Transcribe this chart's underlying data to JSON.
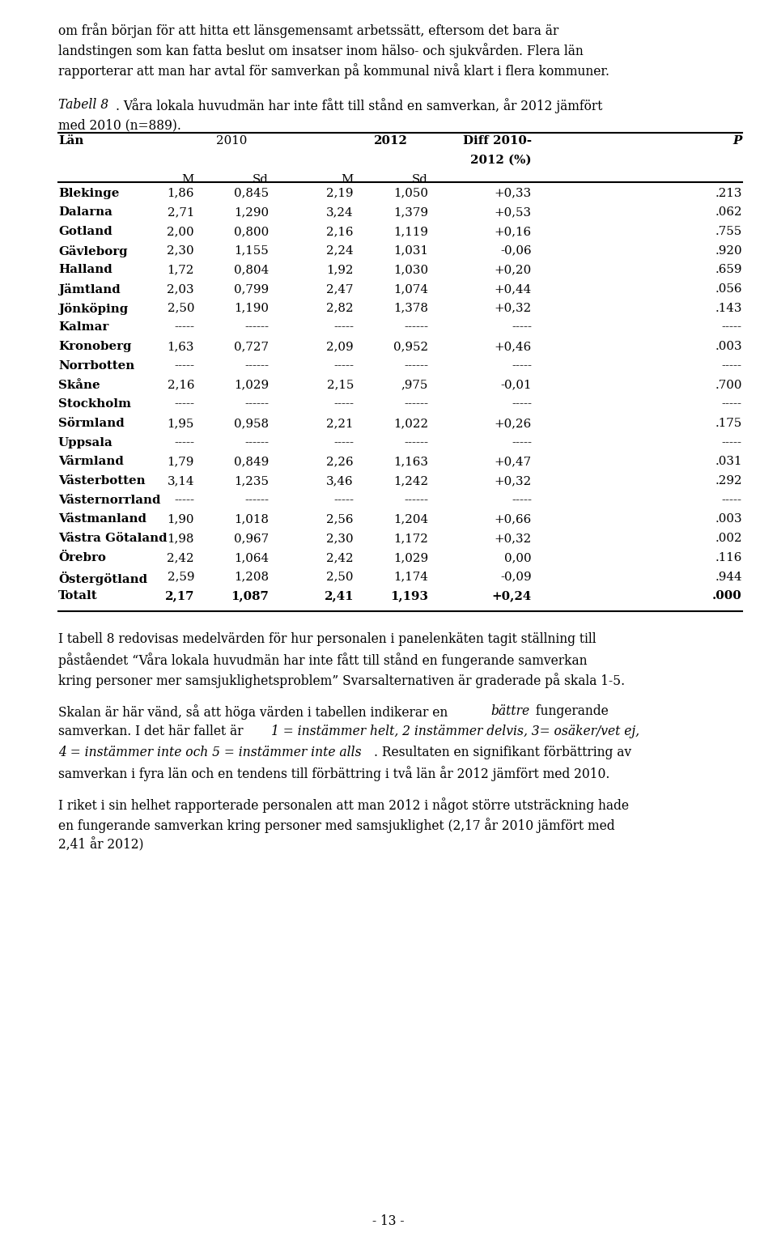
{
  "bg_color": "#ffffff",
  "text_color": "#000000",
  "font_family": "DejaVu Serif",
  "font_size_body": 11.2,
  "font_size_table": 10.8,
  "ml": 0.075,
  "mr": 0.955,
  "table_rows": [
    [
      "Blekinge",
      "1,86",
      "0,845",
      "2,19",
      "1,050",
      "+0,33",
      ".213"
    ],
    [
      "Dalarna",
      "2,71",
      "1,290",
      "3,24",
      "1,379",
      "+0,53",
      ".062"
    ],
    [
      "Gotland",
      "2,00",
      "0,800",
      "2,16",
      "1,119",
      "+0,16",
      ".755"
    ],
    [
      "Gävleborg",
      "2,30",
      "1,155",
      "2,24",
      "1,031",
      "-0,06",
      ".920"
    ],
    [
      "Halland",
      "1,72",
      "0,804",
      "1,92",
      "1,030",
      "+0,20",
      ".659"
    ],
    [
      "Jämtland",
      "2,03",
      "0,799",
      "2,47",
      "1,074",
      "+0,44",
      ".056"
    ],
    [
      "Jönköping",
      "2,50",
      "1,190",
      "2,82",
      "1,378",
      "+0,32",
      ".143"
    ],
    [
      "Kalmar",
      "-----",
      "------",
      "-----",
      "------",
      "-----",
      "-----"
    ],
    [
      "Kronoberg",
      "1,63",
      "0,727",
      "2,09",
      "0,952",
      "+0,46",
      ".003"
    ],
    [
      "Norrbotten",
      "-----",
      "------",
      "-----",
      "------",
      "-----",
      "-----"
    ],
    [
      "Skåne",
      "2,16",
      "1,029",
      "2,15",
      ",975",
      "-0,01",
      ".700"
    ],
    [
      "Stockholm",
      "-----",
      "------",
      "-----",
      "------",
      "-----",
      "-----"
    ],
    [
      "Sörmland",
      "1,95",
      "0,958",
      "2,21",
      "1,022",
      "+0,26",
      ".175"
    ],
    [
      "Uppsala",
      "-----",
      "------",
      "-----",
      "------",
      "-----",
      "-----"
    ],
    [
      "Värmland",
      "1,79",
      "0,849",
      "2,26",
      "1,163",
      "+0,47",
      ".031"
    ],
    [
      "Västerbotten",
      "3,14",
      "1,235",
      "3,46",
      "1,242",
      "+0,32",
      ".292"
    ],
    [
      "Västernorrland",
      "-----",
      "------",
      "-----",
      "------",
      "-----",
      "-----"
    ],
    [
      "Västmanland",
      "1,90",
      "1,018",
      "2,56",
      "1,204",
      "+0,66",
      ".003"
    ],
    [
      "Västra Götaland",
      "1,98",
      "0,967",
      "2,30",
      "1,172",
      "+0,32",
      ".002"
    ],
    [
      "Örebro",
      "2,42",
      "1,064",
      "2,42",
      "1,029",
      "0,00",
      ".116"
    ],
    [
      "Östergötland",
      "2,59",
      "1,208",
      "2,50",
      "1,174",
      "-0,09",
      ".944"
    ],
    [
      "Totalt",
      "2,17",
      "1,087",
      "2,41",
      "1,193",
      "+0,24",
      ".000"
    ]
  ],
  "page_number": "- 13 -"
}
